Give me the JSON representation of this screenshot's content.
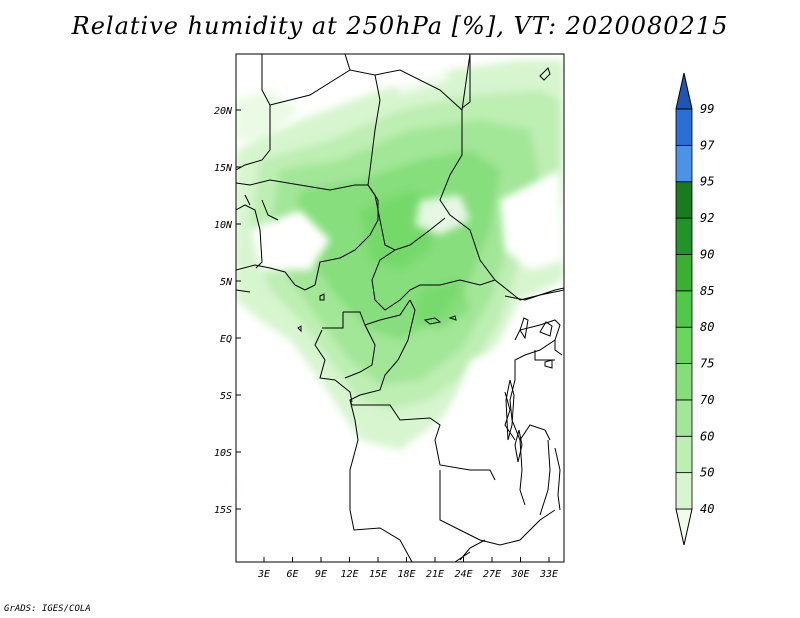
{
  "title": "Relative humidity at 250hPa [%], VT: 2020080215",
  "credit": "GrADS: IGES/COLA",
  "map": {
    "lat_ticks": [
      "20N",
      "15N",
      "10N",
      "5N",
      "EQ",
      "5S",
      "10S",
      "15S"
    ],
    "lon_ticks": [
      "3E",
      "6E",
      "9E",
      "12E",
      "15E",
      "18E",
      "21E",
      "24E",
      "27E",
      "30E",
      "33E"
    ]
  },
  "colorbar": {
    "levels": [
      "40",
      "50",
      "60",
      "70",
      "75",
      "80",
      "85",
      "90",
      "92",
      "95",
      "97",
      "99"
    ],
    "colors": [
      "#f0fcec",
      "#d7f5cf",
      "#bdeeb2",
      "#a2e697",
      "#86de7b",
      "#6ad660",
      "#52c84a",
      "#3aaf34",
      "#22922a",
      "#1a7a1e",
      "#4a94e8",
      "#2a6fd6",
      "#1e56b8"
    ]
  },
  "colors": {
    "land_border": "#000000",
    "background": "#ffffff"
  }
}
